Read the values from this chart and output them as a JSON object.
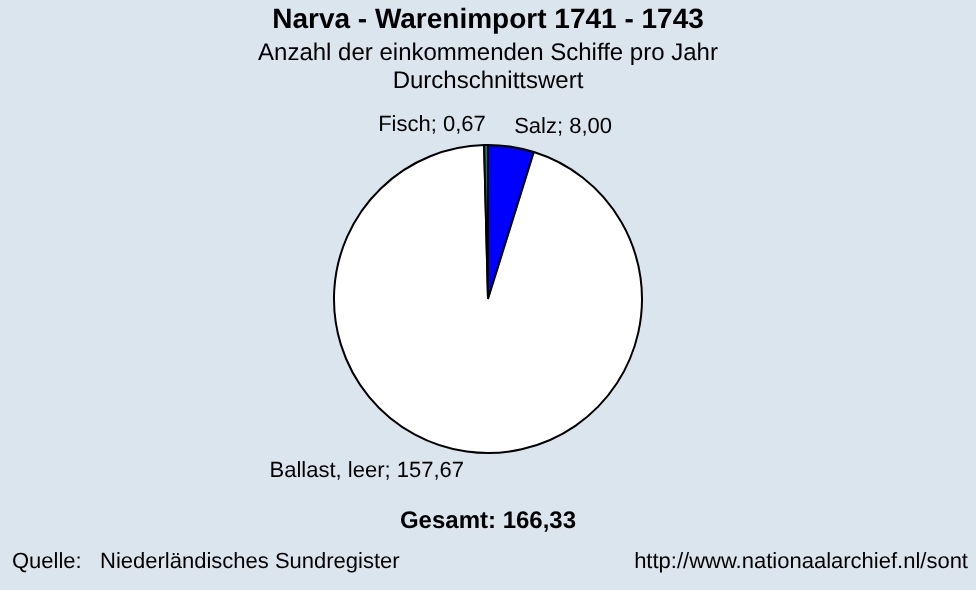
{
  "chart_data": {
    "type": "pie",
    "title": "Narva - Warenimport 1741 - 1743",
    "subtitle": "Anzahl der einkommenden Schiffe pro Jahr\nDurchschnittswert",
    "categories": [
      "Salz",
      "Ballast, leer",
      "Fisch"
    ],
    "values": [
      8.0,
      157.67,
      0.67
    ],
    "colors": [
      "#0000ff",
      "#ffffff",
      "#008080"
    ],
    "value_labels": [
      "8,00",
      "157,67",
      "0,67"
    ],
    "legend": false,
    "annotations": [
      "Gesamt: 166,33",
      "Quelle:   Niederländisches Sundregister",
      "http://www.nationaalarchief.nl/sont"
    ]
  }
}
